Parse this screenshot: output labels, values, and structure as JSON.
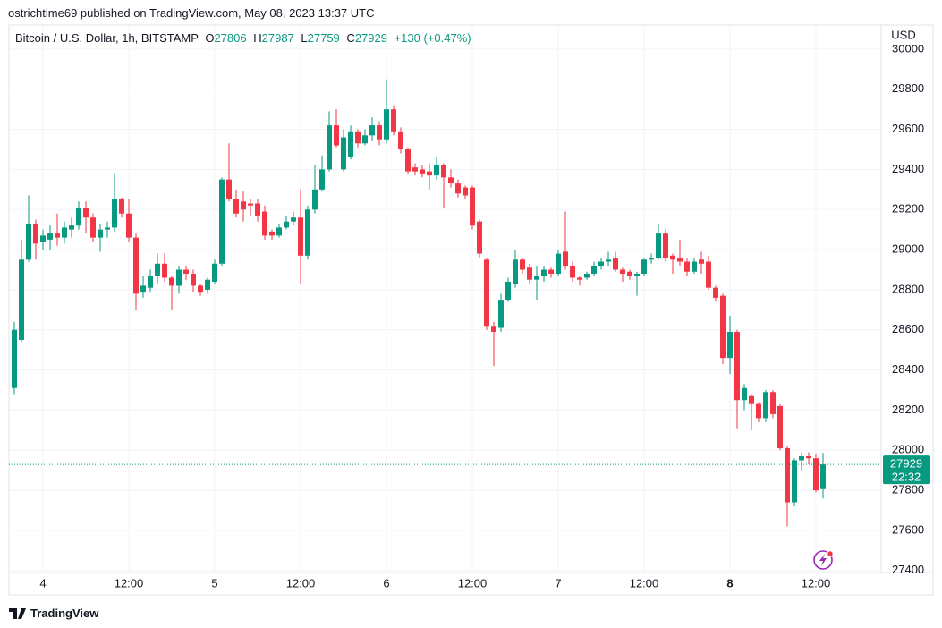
{
  "header": {
    "published": "ostrichtime69 published on TradingView.com, May 08, 2023 13:37 UTC",
    "symbol": "Bitcoin / U.S. Dollar, 1h, BITSTAMP",
    "ohlc_labels": [
      "O",
      "H",
      "L",
      "C"
    ],
    "change": "+130 (+0.47%)",
    "currency": "USD",
    "countdown": "22:32"
  },
  "footer": {
    "brand": "TradingView"
  },
  "chart_data": {
    "type": "candlestick",
    "categories": [
      null,
      null,
      null,
      null,
      "4",
      null,
      null,
      null,
      null,
      null,
      null,
      null,
      null,
      null,
      null,
      null,
      "12:00",
      null,
      null,
      null,
      null,
      null,
      null,
      null,
      null,
      null,
      null,
      null,
      "5",
      null,
      null,
      null,
      null,
      null,
      null,
      null,
      null,
      null,
      null,
      null,
      "12:00",
      null,
      null,
      null,
      null,
      null,
      null,
      null,
      null,
      null,
      null,
      null,
      "6",
      null,
      null,
      null,
      null,
      null,
      null,
      null,
      null,
      null,
      null,
      null,
      "12:00",
      null,
      null,
      null,
      null,
      null,
      null,
      null,
      null,
      null,
      null,
      null,
      "7",
      null,
      null,
      null,
      null,
      null,
      null,
      null,
      null,
      null,
      null,
      null,
      "12:00",
      null,
      null,
      null,
      null,
      null,
      null,
      null,
      null,
      null,
      null,
      null,
      "8",
      null,
      null,
      null,
      null,
      null,
      null,
      null,
      null,
      null,
      null,
      null,
      "12:00",
      null
    ],
    "open": [
      28310,
      28550,
      28950,
      29130,
      29040,
      29050,
      29080,
      29060,
      29100,
      29120,
      29210,
      29160,
      29060,
      29100,
      29110,
      29250,
      29180,
      29060,
      28790,
      28810,
      28870,
      28930,
      28860,
      28820,
      28900,
      28880,
      28820,
      28800,
      28840,
      28930,
      29350,
      29250,
      29240,
      29230,
      29230,
      29190,
      29090,
      29070,
      29110,
      29140,
      29160,
      28970,
      29200,
      29300,
      29400,
      29620,
      29400,
      29460,
      29590,
      29530,
      29570,
      29620,
      29550,
      29700,
      29590,
      29500,
      29410,
      29400,
      29390,
      29370,
      29420,
      29360,
      29330,
      29310,
      29310,
      29140,
      28950,
      28620,
      28610,
      28750,
      28830,
      28950,
      28910,
      28850,
      28870,
      28900,
      28880,
      28990,
      28920,
      28860,
      28860,
      28880,
      28920,
      28940,
      28960,
      28900,
      28890,
      28870,
      28880,
      28950,
      28960,
      29080,
      28970,
      28960,
      28940,
      28890,
      28950,
      28940,
      28810,
      28770,
      28460,
      28590,
      28250,
      28270,
      28230,
      28160,
      28290,
      28220,
      28010,
      27740,
      27950,
      27970,
      27960,
      27806
    ],
    "high": [
      28640,
      29050,
      29270,
      29150,
      29100,
      29120,
      29180,
      29140,
      29160,
      29240,
      29240,
      29180,
      29130,
      29140,
      29380,
      29260,
      29250,
      29080,
      28870,
      28900,
      28980,
      28980,
      28870,
      28920,
      28920,
      28900,
      28830,
      28860,
      28950,
      29360,
      29530,
      29300,
      29290,
      29250,
      29250,
      29220,
      29100,
      29130,
      29170,
      29190,
      29300,
      29220,
      29420,
      29470,
      29690,
      29700,
      29600,
      29620,
      29600,
      29600,
      29660,
      29640,
      29850,
      29720,
      29610,
      29510,
      29430,
      29420,
      29430,
      29460,
      29430,
      29400,
      29350,
      29320,
      29320,
      29150,
      28960,
      28640,
      28780,
      28860,
      29000,
      28960,
      28930,
      28920,
      28920,
      28910,
      29000,
      29190,
      28940,
      28870,
      28890,
      28940,
      28960,
      28990,
      28990,
      28910,
      28900,
      28890,
      28960,
      28980,
      29130,
      29100,
      28980,
      29050,
      28960,
      28960,
      28990,
      28970,
      28820,
      28780,
      28670,
      28600,
      28330,
      28280,
      28240,
      28300,
      28300,
      28230,
      28020,
      27960,
      27990,
      27990,
      27980,
      27987
    ],
    "low": [
      28280,
      28540,
      28940,
      28950,
      29000,
      29000,
      29020,
      29030,
      29060,
      29100,
      29080,
      29040,
      28990,
      29060,
      29090,
      29160,
      29040,
      28700,
      28760,
      28790,
      28830,
      28840,
      28700,
      28780,
      28850,
      28790,
      28770,
      28780,
      28830,
      28920,
      29240,
      29160,
      29140,
      29170,
      29140,
      29050,
      29050,
      29060,
      29100,
      29120,
      28830,
      28950,
      29180,
      29290,
      29390,
      29510,
      29390,
      29450,
      29510,
      29520,
      29540,
      29520,
      29530,
      29570,
      29480,
      29380,
      29370,
      29360,
      29300,
      29350,
      29210,
      29310,
      29260,
      29250,
      29100,
      28960,
      28600,
      28420,
      28590,
      28740,
      28810,
      28880,
      28830,
      28750,
      28840,
      28860,
      28870,
      28900,
      28840,
      28820,
      28850,
      28870,
      28900,
      28920,
      28890,
      28840,
      28850,
      28770,
      28870,
      28930,
      28950,
      28940,
      28880,
      28920,
      28870,
      28880,
      28880,
      28800,
      28740,
      28430,
      28380,
      28110,
      28200,
      28100,
      28140,
      28140,
      28160,
      28000,
      27620,
      27720,
      27900,
      27930,
      27790,
      27759
    ],
    "close": [
      28600,
      28950,
      29130,
      29030,
      29070,
      29080,
      29060,
      29110,
      29120,
      29210,
      29160,
      29060,
      29100,
      29110,
      29250,
      29180,
      29060,
      28780,
      28820,
      28870,
      28930,
      28860,
      28820,
      28900,
      28880,
      28820,
      28790,
      28850,
      28930,
      29350,
      29250,
      29180,
      29200,
      29220,
      29170,
      29070,
      29070,
      29110,
      29140,
      29160,
      28970,
      29200,
      29300,
      29400,
      29620,
      29520,
      29560,
      29590,
      29530,
      29570,
      29620,
      29550,
      29700,
      29590,
      29500,
      29390,
      29390,
      29380,
      29370,
      29420,
      29360,
      29330,
      29280,
      29270,
      29120,
      28980,
      28620,
      28590,
      28750,
      28840,
      28950,
      28900,
      28850,
      28870,
      28900,
      28880,
      28980,
      28920,
      28860,
      28850,
      28880,
      28920,
      28940,
      28950,
      28900,
      28880,
      28870,
      28880,
      28950,
      28960,
      29080,
      28960,
      28950,
      28940,
      28890,
      28940,
      28930,
      28810,
      28760,
      28460,
      28590,
      28250,
      28310,
      28230,
      28160,
      28290,
      28180,
      28010,
      27740,
      27950,
      27970,
      27960,
      27800,
      27929
    ],
    "up_color": "#089981",
    "down_color": "#f23645",
    "ylim": [
      27390,
      30120
    ],
    "yticks": [
      27400,
      27600,
      27800,
      28000,
      28200,
      28400,
      28600,
      28800,
      29000,
      29200,
      29400,
      29600,
      29800,
      30000
    ],
    "grid": true
  }
}
